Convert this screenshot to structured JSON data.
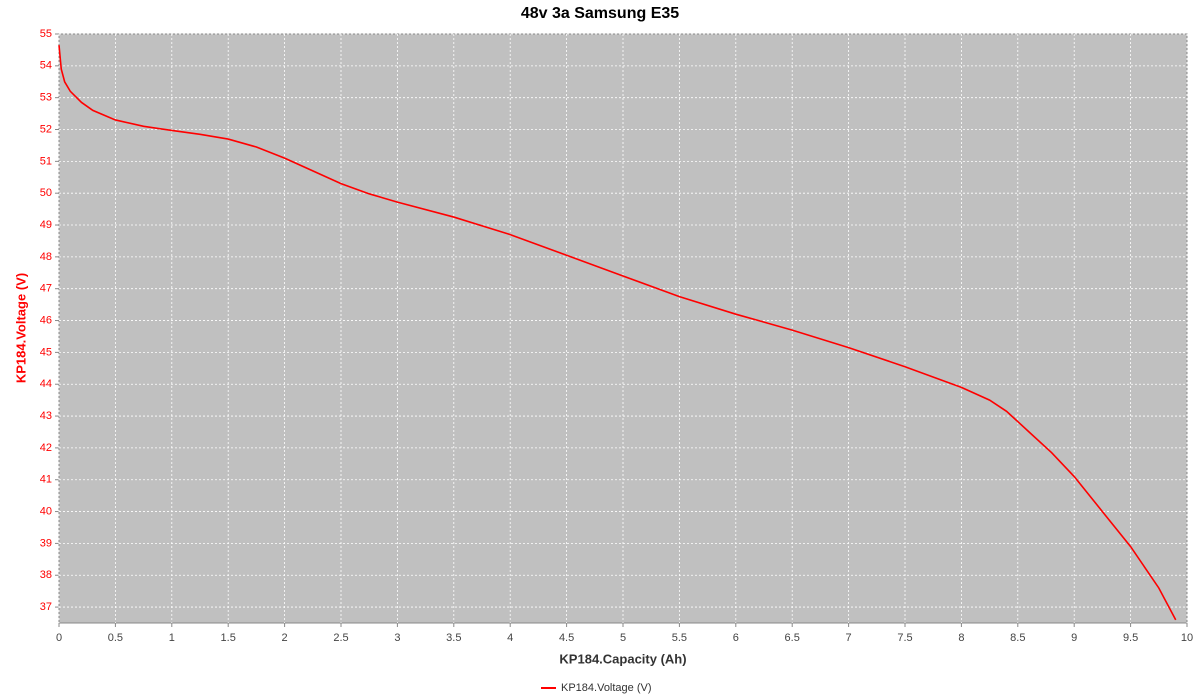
{
  "chart_data": {
    "type": "line",
    "title": "48v 3a Samsung E35",
    "x_label": "KP184.Capacity (Ah)",
    "y_label": "KP184.Voltage (V)",
    "x": [
      0,
      0.02,
      0.05,
      0.1,
      0.2,
      0.3,
      0.5,
      0.75,
      1,
      1.25,
      1.5,
      1.75,
      2,
      2.25,
      2.5,
      2.75,
      3,
      3.5,
      4,
      4.5,
      5,
      5.5,
      6,
      6.5,
      7,
      7.5,
      8,
      8.25,
      8.4,
      8.6,
      8.8,
      9,
      9.25,
      9.5,
      9.75,
      9.9
    ],
    "series": [
      {
        "name": "KP184.Voltage (V)",
        "color": "#ff0000",
        "values": [
          54.65,
          53.9,
          53.5,
          53.2,
          52.85,
          52.6,
          52.3,
          52.1,
          51.97,
          51.85,
          51.7,
          51.45,
          51.1,
          50.7,
          50.3,
          49.98,
          49.72,
          49.25,
          48.7,
          48.05,
          47.4,
          46.75,
          46.2,
          45.7,
          45.15,
          44.55,
          43.9,
          43.5,
          43.15,
          42.5,
          41.85,
          41.1,
          40.0,
          38.9,
          37.6,
          36.6
        ]
      }
    ],
    "xlim": [
      0,
      10
    ],
    "xticks": [
      0,
      0.5,
      1,
      1.5,
      2,
      2.5,
      3,
      3.5,
      4,
      4.5,
      5,
      5.5,
      6,
      6.5,
      7,
      7.5,
      8,
      8.5,
      9,
      9.5,
      10
    ],
    "ylim": [
      36.5,
      55
    ],
    "yticks": [
      37,
      38,
      39,
      40,
      41,
      42,
      43,
      44,
      45,
      46,
      47,
      48,
      49,
      50,
      51,
      52,
      53,
      54,
      55
    ],
    "grid": true,
    "plot_background": "#c0c0c0",
    "y_axis_color": "#ff0000",
    "legend": "bottom"
  }
}
